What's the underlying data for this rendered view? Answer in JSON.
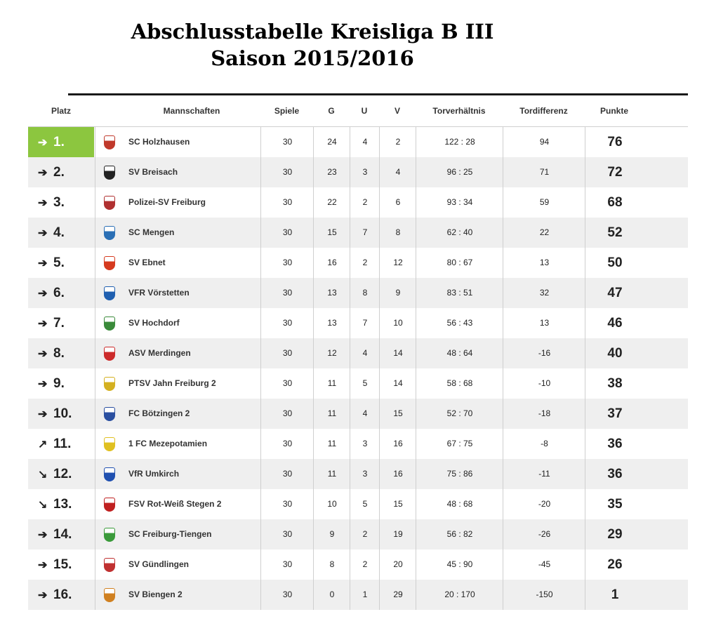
{
  "title": {
    "line1": "Abschlusstabelle Kreisliga B III",
    "line2": "Saison 2015/2016"
  },
  "headers": {
    "platz": "Platz",
    "mannschaften": "Mannschaften",
    "spiele": "Spiele",
    "g": "G",
    "u": "U",
    "v": "V",
    "torverhaeltnis": "Torverhältnis",
    "tordifferenz": "Tordifferenz",
    "punkte": "Punkte"
  },
  "rows": [
    {
      "arrow": "➔",
      "rank": "1.",
      "team": "SC Holzhausen",
      "spiele": "30",
      "g": "24",
      "u": "4",
      "v": "2",
      "tore": "122 : 28",
      "diff": "94",
      "punkte": "76",
      "logo_color": "#c0392b"
    },
    {
      "arrow": "➔",
      "rank": "2.",
      "team": "SV Breisach",
      "spiele": "30",
      "g": "23",
      "u": "3",
      "v": "4",
      "tore": "96 : 25",
      "diff": "71",
      "punkte": "72",
      "logo_color": "#222222"
    },
    {
      "arrow": "➔",
      "rank": "3.",
      "team": "Polizei-SV Freiburg",
      "spiele": "30",
      "g": "22",
      "u": "2",
      "v": "6",
      "tore": "93 : 34",
      "diff": "59",
      "punkte": "68",
      "logo_color": "#b03030"
    },
    {
      "arrow": "➔",
      "rank": "4.",
      "team": "SC Mengen",
      "spiele": "30",
      "g": "15",
      "u": "7",
      "v": "8",
      "tore": "62 : 40",
      "diff": "22",
      "punkte": "52",
      "logo_color": "#2a6fb5"
    },
    {
      "arrow": "➔",
      "rank": "5.",
      "team": "SV Ebnet",
      "spiele": "30",
      "g": "16",
      "u": "2",
      "v": "12",
      "tore": "80 : 67",
      "diff": "13",
      "punkte": "50",
      "logo_color": "#d63a1e"
    },
    {
      "arrow": "➔",
      "rank": "6.",
      "team": "VFR Vörstetten",
      "spiele": "30",
      "g": "13",
      "u": "8",
      "v": "9",
      "tore": "83 : 51",
      "diff": "32",
      "punkte": "47",
      "logo_color": "#1f5fb0"
    },
    {
      "arrow": "➔",
      "rank": "7.",
      "team": "SV Hochdorf",
      "spiele": "30",
      "g": "13",
      "u": "7",
      "v": "10",
      "tore": "56 : 43",
      "diff": "13",
      "punkte": "46",
      "logo_color": "#3a8a3a"
    },
    {
      "arrow": "➔",
      "rank": "8.",
      "team": "ASV Merdingen",
      "spiele": "30",
      "g": "12",
      "u": "4",
      "v": "14",
      "tore": "48 : 64",
      "diff": "-16",
      "punkte": "40",
      "logo_color": "#cc2a2a"
    },
    {
      "arrow": "➔",
      "rank": "9.",
      "team": "PTSV Jahn Freiburg 2",
      "spiele": "30",
      "g": "11",
      "u": "5",
      "v": "14",
      "tore": "58 : 68",
      "diff": "-10",
      "punkte": "38",
      "logo_color": "#d4b020"
    },
    {
      "arrow": "➔",
      "rank": "10.",
      "team": "FC Bötzingen 2",
      "spiele": "30",
      "g": "11",
      "u": "4",
      "v": "15",
      "tore": "52 : 70",
      "diff": "-18",
      "punkte": "37",
      "logo_color": "#2a4fa0"
    },
    {
      "arrow": "↗",
      "rank": "11.",
      "team": "1 FC Mezepotamien",
      "spiele": "30",
      "g": "11",
      "u": "3",
      "v": "16",
      "tore": "67 : 75",
      "diff": "-8",
      "punkte": "36",
      "logo_color": "#e0c020"
    },
    {
      "arrow": "↘",
      "rank": "12.",
      "team": "VfR Umkirch",
      "spiele": "30",
      "g": "11",
      "u": "3",
      "v": "16",
      "tore": "75 : 86",
      "diff": "-11",
      "punkte": "36",
      "logo_color": "#2050b0"
    },
    {
      "arrow": "↘",
      "rank": "13.",
      "team": "FSV Rot-Weiß Stegen 2",
      "spiele": "30",
      "g": "10",
      "u": "5",
      "v": "15",
      "tore": "48 : 68",
      "diff": "-20",
      "punkte": "35",
      "logo_color": "#c02020"
    },
    {
      "arrow": "➔",
      "rank": "14.",
      "team": "SC Freiburg-Tiengen",
      "spiele": "30",
      "g": "9",
      "u": "2",
      "v": "19",
      "tore": "56 : 82",
      "diff": "-26",
      "punkte": "29",
      "logo_color": "#3a9a3a"
    },
    {
      "arrow": "➔",
      "rank": "15.",
      "team": "SV Gündlingen",
      "spiele": "30",
      "g": "8",
      "u": "2",
      "v": "20",
      "tore": "45 : 90",
      "diff": "-45",
      "punkte": "26",
      "logo_color": "#c03030"
    },
    {
      "arrow": "➔",
      "rank": "16.",
      "team": "SV Biengen 2",
      "spiele": "30",
      "g": "0",
      "u": "1",
      "v": "29",
      "tore": "20 : 170",
      "diff": "-150",
      "punkte": "1",
      "logo_color": "#d08020"
    }
  ],
  "colors": {
    "first_place_highlight": "#8cc63f",
    "alt_row": "#efefef"
  }
}
